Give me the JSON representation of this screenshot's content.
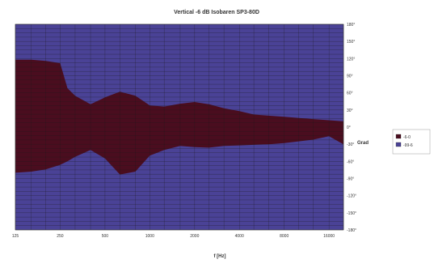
{
  "chart_data": {
    "type": "area",
    "title": "Vertical -6 dB Isobaren SP3-80D",
    "xlabel": "f [Hz]",
    "ylabel": "Grad",
    "x_scale": "log",
    "x_ticks": [
      "125",
      "250",
      "500",
      "1000",
      "2000",
      "4000",
      "8000",
      "16000"
    ],
    "y_ticks": [
      "180°",
      "150°",
      "120°",
      "90°",
      "60°",
      "30°",
      "0°",
      "-30°",
      "-60°",
      "-90°",
      "-120°",
      "-150°",
      "-180°"
    ],
    "ylim": [
      -180,
      180
    ],
    "grid": true,
    "legend_position": "right",
    "series": [
      {
        "name": "-6-0",
        "color": "#4a0d1f",
        "x": [
          125,
          160,
          200,
          250,
          280,
          315,
          400,
          500,
          630,
          800,
          1000,
          1250,
          1600,
          2000,
          2500,
          3150,
          4000,
          5000,
          6300,
          8000,
          10000,
          12500,
          16000,
          20000
        ],
        "upper": [
          118,
          118,
          116,
          112,
          68,
          55,
          40,
          52,
          62,
          55,
          38,
          36,
          41,
          44,
          40,
          33,
          28,
          22,
          20,
          18,
          16,
          14,
          12,
          10
        ],
        "lower": [
          -80,
          -78,
          -74,
          -66,
          -60,
          -52,
          -40,
          -55,
          -83,
          -78,
          -50,
          -40,
          -33,
          -35,
          -36,
          -33,
          -32,
          -31,
          -30,
          -28,
          -25,
          -22,
          -16,
          -30
        ]
      },
      {
        "name": "-99-6",
        "color": "#4a4296"
      }
    ]
  }
}
